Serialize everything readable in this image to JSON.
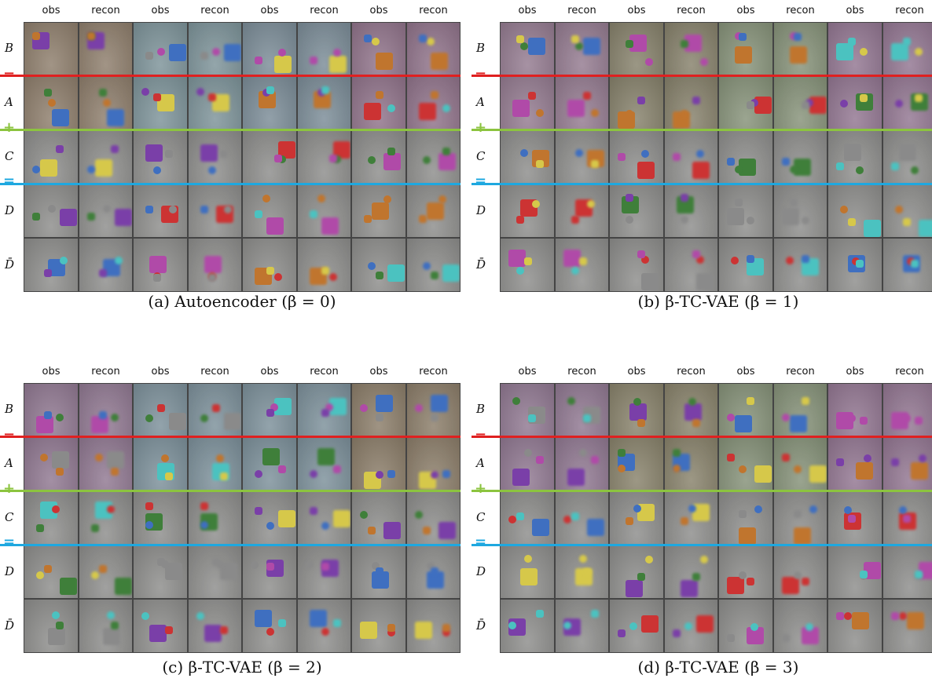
{
  "panels": [
    {
      "column_headers": [
        "obs",
        "recon",
        "obs",
        "recon",
        "obs",
        "recon",
        "obs",
        "recon"
      ],
      "row_labels": [
        "B",
        "A",
        "C",
        "D",
        "D̄"
      ],
      "operators": [
        "−",
        "+",
        "="
      ],
      "caption": "(a) Autoencoder (β = 0)"
    },
    {
      "column_headers": [
        "obs",
        "recon",
        "obs",
        "recon",
        "obs",
        "recon",
        "obs",
        "recon"
      ],
      "row_labels": [
        "B",
        "A",
        "C",
        "D",
        "D̄"
      ],
      "operators": [
        "−",
        "+",
        "="
      ],
      "caption": "(b) β-TC-VAE (β = 1)"
    },
    {
      "column_headers": [
        "obs",
        "recon",
        "obs",
        "recon",
        "obs",
        "recon",
        "obs",
        "recon"
      ],
      "row_labels": [
        "B",
        "A",
        "C",
        "D",
        "D̄"
      ],
      "operators": [
        "−",
        "+",
        "="
      ],
      "caption": "(c) β-TC-VAE (β = 2)"
    },
    {
      "column_headers": [
        "obs",
        "recon",
        "obs",
        "recon",
        "obs",
        "recon",
        "obs",
        "recon"
      ],
      "row_labels": [
        "B",
        "A",
        "C",
        "D",
        "D̄"
      ],
      "operators": [
        "−",
        "+",
        "="
      ],
      "caption": "(d) β-TC-VAE (β = 3)"
    }
  ]
}
